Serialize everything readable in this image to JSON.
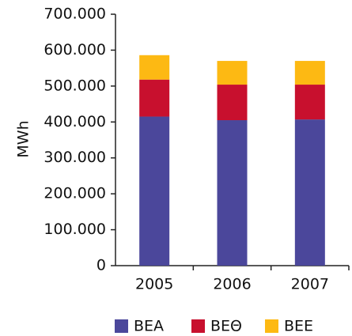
{
  "chart_data": {
    "type": "stacked_bar",
    "y_label": "MWh",
    "categories": [
      "2005",
      "2006",
      "2007"
    ],
    "series": [
      {
        "name": "BEA",
        "color": "#4b479b",
        "values": [
          415000,
          405000,
          407000
        ]
      },
      {
        "name": "BEΘ",
        "color": "#c8102e",
        "values": [
          103000,
          99000,
          97000
        ]
      },
      {
        "name": "BEE",
        "color": "#fdb913",
        "values": [
          68000,
          66000,
          66000
        ]
      }
    ],
    "ylim": [
      0,
      700000
    ],
    "yticks": [
      0,
      {
        "value": 100000,
        "label": "100.000"
      },
      {
        "value": 200000,
        "label": "200.000"
      },
      {
        "value": 300000,
        "label": "300.000"
      },
      {
        "value": 400000,
        "label": "400.000"
      },
      {
        "value": 500000,
        "label": "500.000"
      },
      {
        "value": 600000,
        "label": "600.000"
      },
      {
        "value": 700000,
        "label": "700.000"
      }
    ],
    "grid": false,
    "legend": "bottom"
  }
}
